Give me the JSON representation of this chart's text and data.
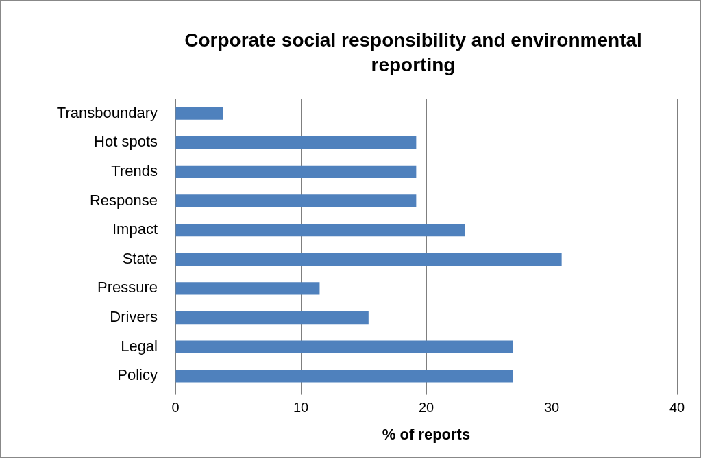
{
  "chart_data": {
    "type": "bar",
    "orientation": "horizontal",
    "title": "Corporate social responsibility and environmental reporting",
    "xlabel": "% of reports",
    "categories": [
      "Transboundary",
      "Hot spots",
      "Trends",
      "Response",
      "Impact",
      "State",
      "Pressure",
      "Drivers",
      "Legal",
      "Policy"
    ],
    "values": [
      3.8,
      19.2,
      19.2,
      19.2,
      23.1,
      30.8,
      11.5,
      15.4,
      26.9,
      26.9
    ],
    "color": "#4f81bd",
    "xlim": [
      0,
      40
    ],
    "xticks": [
      0,
      10,
      20,
      30,
      40
    ],
    "grid": "x",
    "legend": false
  }
}
